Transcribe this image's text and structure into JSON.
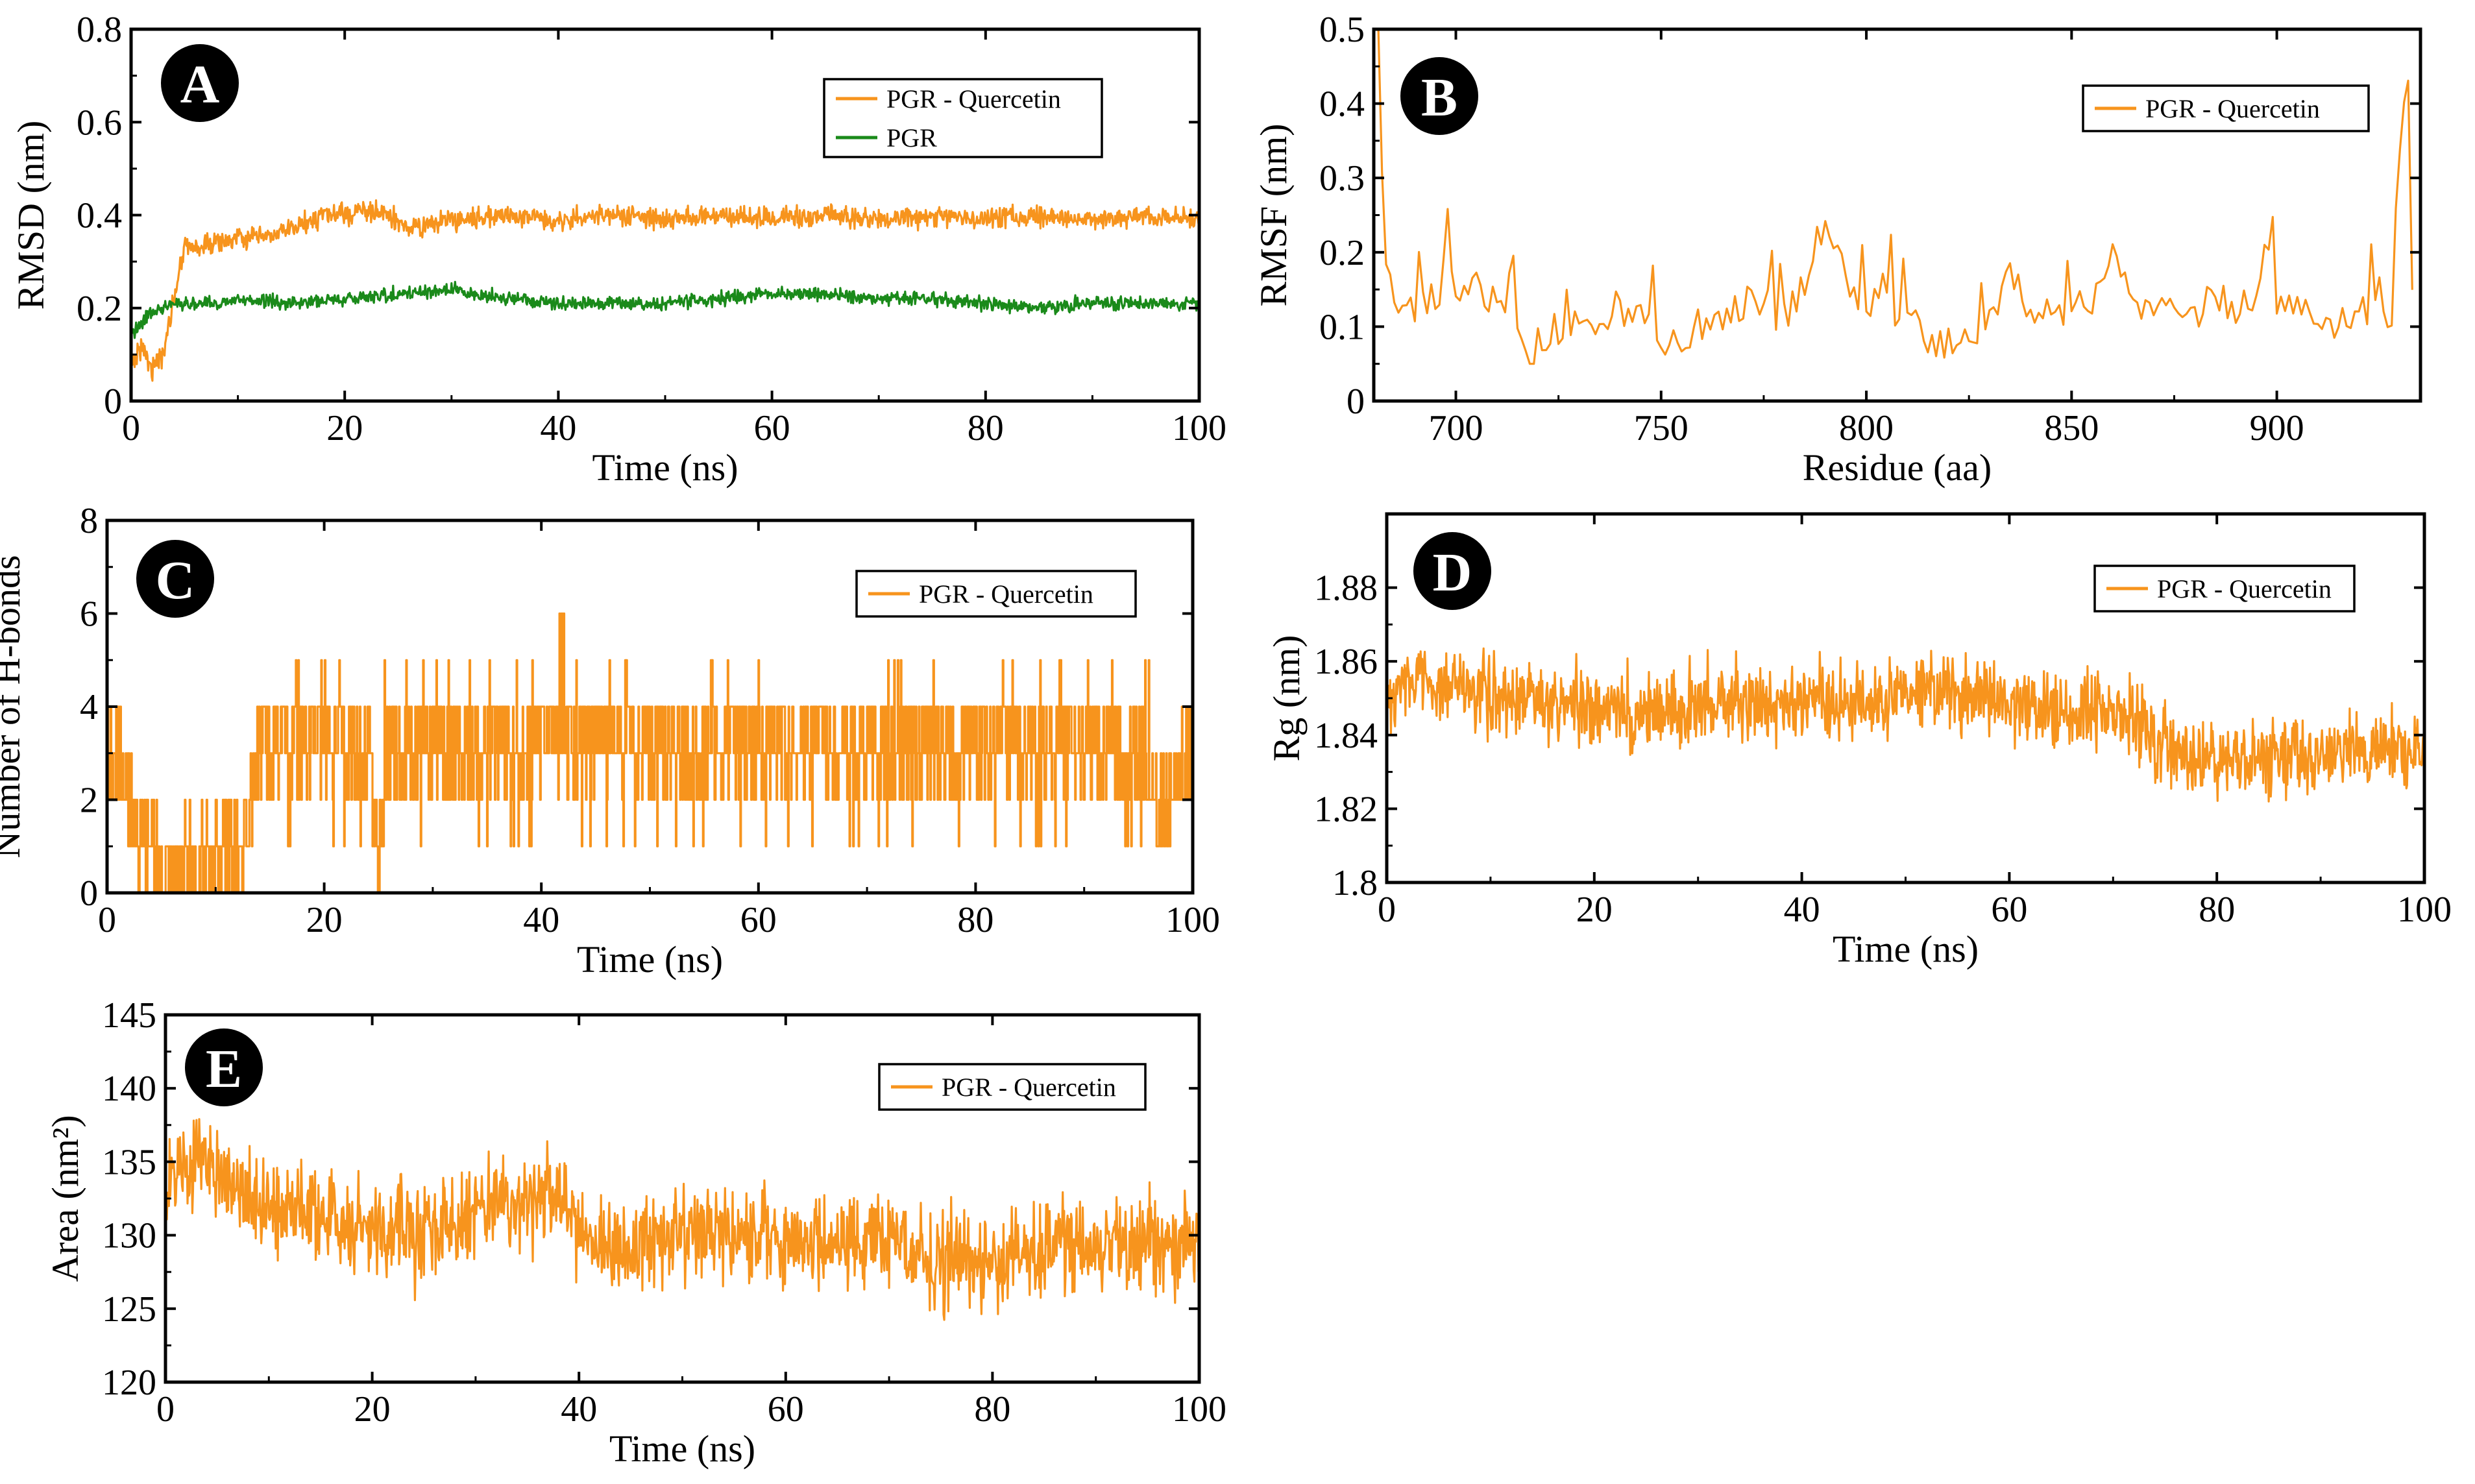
{
  "chart_data": [
    {
      "id": "A",
      "panel_label": "A",
      "type": "line",
      "xlabel": "Time (ns)",
      "ylabel": "RMSD (nm)",
      "xlim": [
        0,
        100
      ],
      "ylim": [
        0,
        0.8
      ],
      "xticks": [
        0,
        20,
        40,
        60,
        80,
        100
      ],
      "yticks": [
        0,
        0.2,
        0.4,
        0.6,
        0.8
      ],
      "ytick_labels": [
        "0",
        "0.2",
        "0.4",
        "0.6",
        "0.8"
      ],
      "legend_position": "top-right",
      "series": [
        {
          "name": "PGR - Quercetin",
          "color": "#f7941d",
          "noise": 0.014,
          "x": [
            0,
            1,
            2,
            3,
            4,
            5,
            6,
            8,
            10,
            12,
            14,
            16,
            18,
            20,
            22,
            24,
            26,
            28,
            30,
            35,
            40,
            45,
            50,
            55,
            60,
            65,
            70,
            75,
            80,
            85,
            90,
            95,
            100
          ],
          "y": [
            0.08,
            0.12,
            0.07,
            0.1,
            0.22,
            0.34,
            0.33,
            0.34,
            0.35,
            0.35,
            0.36,
            0.38,
            0.4,
            0.4,
            0.41,
            0.4,
            0.37,
            0.38,
            0.39,
            0.4,
            0.39,
            0.4,
            0.39,
            0.4,
            0.39,
            0.4,
            0.39,
            0.4,
            0.39,
            0.4,
            0.39,
            0.4,
            0.39
          ]
        },
        {
          "name": "PGR",
          "color": "#1a8a1a",
          "noise": 0.009,
          "x": [
            0,
            1,
            2,
            3,
            4,
            6,
            8,
            10,
            15,
            20,
            25,
            30,
            35,
            40,
            45,
            50,
            55,
            60,
            65,
            70,
            75,
            80,
            85,
            90,
            95,
            100
          ],
          "y": [
            0.14,
            0.17,
            0.19,
            0.2,
            0.21,
            0.21,
            0.21,
            0.22,
            0.21,
            0.22,
            0.23,
            0.24,
            0.22,
            0.21,
            0.21,
            0.21,
            0.22,
            0.23,
            0.23,
            0.22,
            0.22,
            0.21,
            0.2,
            0.21,
            0.21,
            0.21
          ]
        }
      ]
    },
    {
      "id": "B",
      "panel_label": "B",
      "type": "line",
      "xlabel": "Residue (aa)",
      "ylabel": "RMSF (nm)",
      "xlim": [
        680,
        935
      ],
      "ylim": [
        0,
        0.5
      ],
      "xticks": [
        700,
        750,
        800,
        850,
        900
      ],
      "yticks": [
        0,
        0.1,
        0.2,
        0.3,
        0.4,
        0.5
      ],
      "ytick_labels": [
        "0",
        "0.1",
        "0.2",
        "0.3",
        "0.4",
        "0.5"
      ],
      "legend_position": "top-right",
      "series": [
        {
          "name": "PGR - Quercetin",
          "color": "#f7941d",
          "noise": 0.022,
          "x": [
            681,
            682,
            683,
            685,
            688,
            692,
            696,
            698,
            700,
            705,
            710,
            715,
            718,
            720,
            725,
            730,
            735,
            740,
            745,
            750,
            755,
            760,
            765,
            770,
            775,
            780,
            785,
            788,
            791,
            795,
            800,
            805,
            810,
            815,
            820,
            825,
            830,
            835,
            840,
            845,
            850,
            855,
            860,
            865,
            870,
            875,
            880,
            885,
            890,
            895,
            899,
            900,
            905,
            910,
            915,
            920,
            925,
            928,
            930,
            932,
            933
          ],
          "y": [
            0.5,
            0.3,
            0.18,
            0.13,
            0.12,
            0.12,
            0.14,
            0.23,
            0.11,
            0.15,
            0.12,
            0.08,
            0.06,
            0.07,
            0.09,
            0.11,
            0.1,
            0.12,
            0.1,
            0.08,
            0.07,
            0.08,
            0.1,
            0.12,
            0.13,
            0.1,
            0.15,
            0.23,
            0.22,
            0.15,
            0.13,
            0.12,
            0.1,
            0.08,
            0.07,
            0.08,
            0.11,
            0.16,
            0.12,
            0.11,
            0.12,
            0.13,
            0.18,
            0.12,
            0.13,
            0.12,
            0.11,
            0.14,
            0.12,
            0.13,
            0.25,
            0.11,
            0.12,
            0.11,
            0.1,
            0.12,
            0.12,
            0.11,
            0.35,
            0.43,
            0.13
          ]
        }
      ]
    },
    {
      "id": "C",
      "panel_label": "C",
      "type": "line",
      "xlabel": "Time (ns)",
      "ylabel": "Number of H-bonds",
      "xlim": [
        0,
        100
      ],
      "ylim": [
        0,
        8
      ],
      "xticks": [
        0,
        20,
        40,
        60,
        80,
        100
      ],
      "yticks": [
        0,
        2,
        4,
        6,
        8
      ],
      "ytick_labels": [
        "0",
        "2",
        "4",
        "6",
        "8"
      ],
      "legend_position": "top-right",
      "series": [
        {
          "name": "PGR - Quercetin",
          "color": "#f7941d",
          "discrete": true,
          "x": [
            0,
            1,
            2,
            3,
            4,
            6,
            8,
            10,
            12,
            13,
            14,
            16,
            20,
            24,
            25,
            26,
            30,
            40,
            42,
            50,
            60,
            70,
            80,
            90,
            95,
            97,
            100
          ],
          "y": [
            3,
            3,
            2,
            1,
            0.7,
            0.5,
            0.5,
            0.5,
            1,
            1.5,
            3,
            3.2,
            3.2,
            3,
            1,
            3.2,
            3.2,
            3.2,
            3.3,
            3.2,
            3.2,
            3.2,
            3.2,
            3.2,
            3,
            1.6,
            3
          ]
        }
      ]
    },
    {
      "id": "D",
      "panel_label": "D",
      "type": "line",
      "xlabel": "Time (ns)",
      "ylabel": "Rg (nm)",
      "xlim": [
        0,
        100
      ],
      "ylim": [
        1.8,
        1.9
      ],
      "xticks": [
        0,
        20,
        40,
        60,
        80,
        100
      ],
      "yticks": [
        1.8,
        1.82,
        1.84,
        1.86,
        1.88
      ],
      "ytick_labels": [
        "1.8",
        "1.82",
        "1.84",
        "1.86",
        "1.88"
      ],
      "legend_position": "top-right",
      "series": [
        {
          "name": "PGR - Quercetin",
          "color": "#f7941d",
          "noise": 0.0065,
          "x": [
            0,
            2,
            5,
            10,
            15,
            20,
            25,
            30,
            35,
            40,
            45,
            50,
            55,
            60,
            65,
            70,
            72,
            75,
            78,
            80,
            85,
            90,
            95,
            100
          ],
          "y": [
            1.85,
            1.856,
            1.854,
            1.851,
            1.849,
            1.847,
            1.846,
            1.848,
            1.849,
            1.849,
            1.848,
            1.851,
            1.852,
            1.849,
            1.846,
            1.846,
            1.845,
            1.837,
            1.833,
            1.832,
            1.834,
            1.836,
            1.836,
            1.835
          ]
        }
      ]
    },
    {
      "id": "E",
      "panel_label": "E",
      "type": "line",
      "xlabel": "Time (ns)",
      "ylabel": "Area (nm²)",
      "xlim": [
        0,
        100
      ],
      "ylim": [
        120,
        145
      ],
      "xticks": [
        0,
        20,
        40,
        60,
        80,
        100
      ],
      "yticks": [
        120,
        125,
        130,
        135,
        140,
        145
      ],
      "ytick_labels": [
        "120",
        "125",
        "130",
        "135",
        "140",
        "145"
      ],
      "legend_position": "top-right",
      "series": [
        {
          "name": "PGR - Quercetin",
          "color": "#f7941d",
          "noise": 2.0,
          "x": [
            0,
            2,
            4,
            6,
            10,
            15,
            20,
            25,
            30,
            35,
            38,
            40,
            45,
            50,
            55,
            60,
            65,
            70,
            75,
            80,
            85,
            90,
            95,
            100
          ],
          "y": [
            133.5,
            134.5,
            135,
            133.5,
            131.5,
            131,
            130.5,
            130,
            131.5,
            132,
            132.5,
            129.5,
            129,
            130,
            130.5,
            129.5,
            129.5,
            129.5,
            128.5,
            128,
            129,
            129.5,
            129.5,
            129.5
          ]
        }
      ]
    }
  ]
}
